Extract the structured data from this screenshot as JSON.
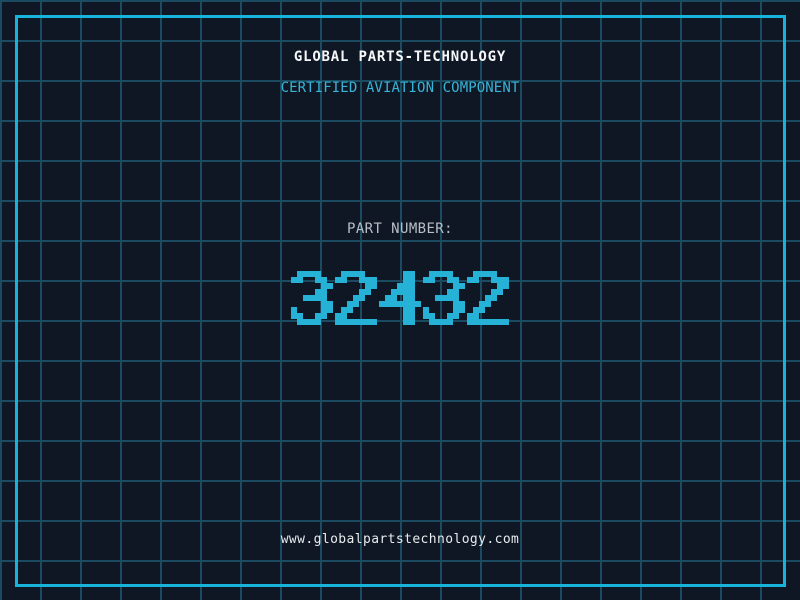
{
  "header": {
    "title": "GLOBAL PARTS-TECHNOLOGY",
    "subtitle": "CERTIFIED AVIATION COMPONENT"
  },
  "part": {
    "label": "PART NUMBER:",
    "value": "32432"
  },
  "footer": {
    "url": "www.globalpartstechnology.com"
  },
  "colors": {
    "bg": "#0f1725",
    "grid": "#1a4b61",
    "frame": "#17b3da",
    "title": "#f6f7f8",
    "subtitle": "#38b4d6",
    "part_label": "#b9bfc7",
    "part_number": "#26b2d7",
    "url": "#e9ebed"
  }
}
